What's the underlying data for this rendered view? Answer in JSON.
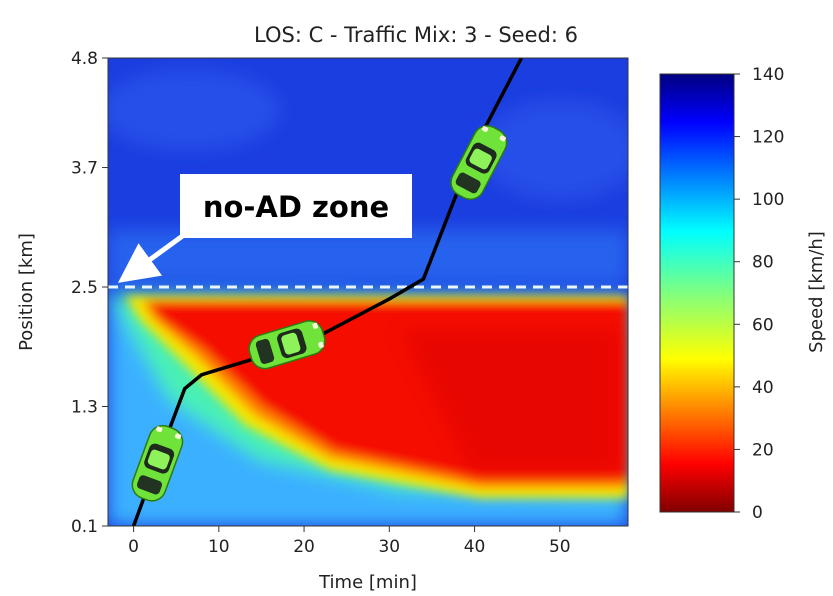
{
  "chart_data": {
    "type": "heatmap",
    "title": "LOS: C - Traffic Mix: 3 - Seed: 6",
    "xlabel": "Time [min]",
    "ylabel": "Position [km]",
    "xlim": [
      -3,
      58
    ],
    "ylim": [
      0.1,
      4.8
    ],
    "xticks": [
      "0",
      "10",
      "20",
      "30",
      "40",
      "50"
    ],
    "xtick_values": [
      0,
      10,
      20,
      30,
      40,
      50
    ],
    "yticks": [
      "0.1",
      "1.3",
      "2.5",
      "3.7",
      "4.8"
    ],
    "ytick_values": [
      0.1,
      1.3,
      2.5,
      3.7,
      4.8
    ],
    "colorbar": {
      "label": "Speed [km/h]",
      "ticks": [
        "0",
        "20",
        "40",
        "60",
        "80",
        "100",
        "120",
        "140"
      ],
      "tick_values": [
        0,
        20,
        40,
        60,
        80,
        100,
        120,
        140
      ],
      "range": [
        0,
        140
      ],
      "colormap": "jet"
    },
    "no_ad_boundary_km": 2.5,
    "annotation": "no-AD zone",
    "trajectory": [
      {
        "t": 0,
        "x": 0.1
      },
      {
        "t": 3,
        "x": 0.8
      },
      {
        "t": 6,
        "x": 1.48
      },
      {
        "t": 8,
        "x": 1.62
      },
      {
        "t": 20,
        "x": 1.93
      },
      {
        "t": 30,
        "x": 2.38
      },
      {
        "t": 34,
        "x": 2.58
      },
      {
        "t": 40,
        "x": 3.9
      },
      {
        "t": 45.5,
        "x": 4.8
      }
    ],
    "vehicle_markers": [
      {
        "t": 2.8,
        "x": 0.73
      },
      {
        "t": 18,
        "x": 1.92
      },
      {
        "t": 40.5,
        "x": 3.75
      }
    ],
    "colors": {
      "free_flow": "#1b3ee0",
      "congestion": "#d00000",
      "trajectory": "#000000",
      "vehicle": "#6fe33a"
    }
  }
}
